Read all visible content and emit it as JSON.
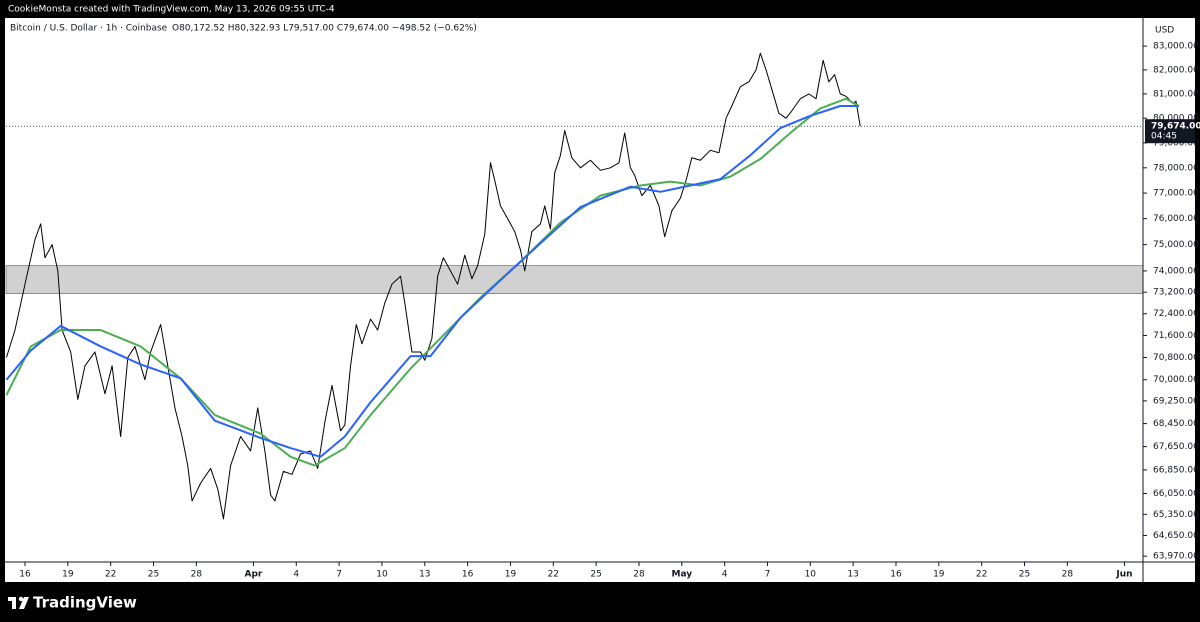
{
  "attribution": "CookieMonsta created with TradingView.com, May 13, 2026 09:55 UTC-4",
  "brand": "TradingView",
  "chart_data": {
    "type": "line",
    "symbol": "Bitcoin / U.S. Dollar · 1h · Coinbase",
    "ohlc": "O80,172.52 H80,322.93 L79,517.00 C79,674.00 −498.52 (−0.62%)",
    "currency": "USD",
    "last_price": {
      "value": 79674,
      "label": "79,674.00"
    },
    "countdown": "04:45",
    "log_scale": true,
    "grid": false,
    "zone": [
      73150,
      74200
    ],
    "zone_color": "#d1d1d1",
    "xlim": [
      14.67,
      94.3
    ],
    "ylim": [
      63780,
      84200
    ],
    "xticks": [
      16,
      19,
      22,
      25,
      28,
      {
        "value": 32,
        "label": "Apr"
      },
      {
        "value": 35,
        "label": "4"
      },
      {
        "value": 38,
        "label": "7"
      },
      {
        "value": 41,
        "label": "10"
      },
      {
        "value": 44,
        "label": "13"
      },
      {
        "value": 47,
        "label": "16"
      },
      {
        "value": 50,
        "label": "19"
      },
      {
        "value": 53,
        "label": "22"
      },
      {
        "value": 56,
        "label": "25"
      },
      {
        "value": 59,
        "label": "28"
      },
      {
        "value": 62,
        "label": "May"
      },
      {
        "value": 65,
        "label": "4"
      },
      {
        "value": 68,
        "label": "7"
      },
      {
        "value": 71,
        "label": "10"
      },
      {
        "value": 74,
        "label": "13"
      },
      {
        "value": 77,
        "label": "16"
      },
      {
        "value": 80,
        "label": "19"
      },
      {
        "value": 83,
        "label": "22"
      },
      {
        "value": 86,
        "label": "25"
      },
      {
        "value": 89,
        "label": "28"
      },
      {
        "value": 93,
        "label": "Jun"
      }
    ],
    "yticks": [
      {
        "value": 83000,
        "label": "83,000.00"
      },
      {
        "value": 82000,
        "label": "82,000.00"
      },
      {
        "value": 81000,
        "label": "81,000.00"
      },
      {
        "value": 80000,
        "label": "80,000.00"
      },
      {
        "value": 79000,
        "label": "79,000.00"
      },
      {
        "value": 78000,
        "label": "78,000.00"
      },
      {
        "value": 77000,
        "label": "77,000.00"
      },
      {
        "value": 76000,
        "label": "76,000.00"
      },
      {
        "value": 75000,
        "label": "75,000.00"
      },
      {
        "value": 74000,
        "label": "74,000.00"
      },
      {
        "value": 73200,
        "label": "73,200.00"
      },
      {
        "value": 72400,
        "label": "72,400.00"
      },
      {
        "value": 71600,
        "label": "71,600.00"
      },
      {
        "value": 70800,
        "label": "70,800.00"
      },
      {
        "value": 70000,
        "label": "70,000.00"
      },
      {
        "value": 69250,
        "label": "69,250.00"
      },
      {
        "value": 68450,
        "label": "68,450.00"
      },
      {
        "value": 67650,
        "label": "67,650.00"
      },
      {
        "value": 66850,
        "label": "66,850.00"
      },
      {
        "value": 66050,
        "label": "66,050.00"
      },
      {
        "value": 65350,
        "label": "65,350.00"
      },
      {
        "value": 64650,
        "label": "64,650.00"
      },
      {
        "value": 63970,
        "label": "63,970.00"
      }
    ],
    "series": [
      {
        "color": "#000000",
        "width": 1,
        "x": [
          14.7,
          15.3,
          16.0,
          16.7,
          17.1,
          17.4,
          17.9,
          18.3,
          18.6,
          19.2,
          19.7,
          20.2,
          20.9,
          21.6,
          22.1,
          22.7,
          23.2,
          23.7,
          24.4,
          24.8,
          25.5,
          26.0,
          26.5,
          27.0,
          27.4,
          27.7,
          28.3,
          29.0,
          29.5,
          29.9,
          30.4,
          31.1,
          31.8,
          32.3,
          32.8,
          33.2,
          33.5,
          34.1,
          34.7,
          35.3,
          36.0,
          36.5,
          37.0,
          37.5,
          38.1,
          38.4,
          38.8,
          39.2,
          39.6,
          40.2,
          40.7,
          41.2,
          41.7,
          42.3,
          42.6,
          43.1,
          43.7,
          44.0,
          44.5,
          44.9,
          45.3,
          45.8,
          46.3,
          46.8,
          47.3,
          47.7,
          48.2,
          48.6,
          48.9,
          49.3,
          49.8,
          50.3,
          50.7,
          51.0,
          51.5,
          52.1,
          52.4,
          52.8,
          53.1,
          53.5,
          53.8,
          54.3,
          54.9,
          55.6,
          56.3,
          57.0,
          57.6,
          58.0,
          58.4,
          58.7,
          59.2,
          59.8,
          60.4,
          60.8,
          61.3,
          61.9,
          62.3,
          62.7,
          63.3,
          64.0,
          64.6,
          65.1,
          65.5,
          66.1,
          66.7,
          67.2,
          67.5,
          67.9,
          68.3,
          68.8,
          69.3,
          69.7,
          70.3,
          70.9,
          71.4,
          71.9,
          72.3,
          72.7,
          73.1,
          73.5,
          74.0,
          74.2,
          74.4,
          74.5
        ],
        "values": [
          70800,
          71800,
          73500,
          75200,
          75800,
          74500,
          75000,
          74000,
          71800,
          71000,
          69300,
          70500,
          71000,
          69500,
          70500,
          68000,
          70800,
          71200,
          70000,
          71000,
          72000,
          70500,
          69000,
          68000,
          67000,
          65800,
          66400,
          66900,
          66200,
          65200,
          67000,
          68000,
          67500,
          69000,
          67500,
          66000,
          65800,
          66800,
          66700,
          67400,
          67500,
          66900,
          68500,
          69800,
          68200,
          68400,
          70500,
          72000,
          71300,
          72200,
          71800,
          72800,
          73500,
          73800,
          72800,
          71000,
          71000,
          70700,
          71500,
          73800,
          74500,
          74000,
          73500,
          74600,
          73700,
          74200,
          75400,
          78200,
          77500,
          76500,
          76000,
          75500,
          74800,
          74000,
          75500,
          75800,
          76500,
          75600,
          77800,
          78500,
          79500,
          78400,
          78000,
          78300,
          77900,
          78000,
          78200,
          79400,
          78000,
          77700,
          76900,
          77300,
          76500,
          75300,
          76300,
          76800,
          77500,
          78400,
          78300,
          78700,
          78600,
          80000,
          80500,
          81300,
          81500,
          82000,
          82700,
          82000,
          81200,
          80200,
          80000,
          80300,
          80800,
          81000,
          80800,
          82400,
          81500,
          81800,
          81000,
          80900,
          80600,
          80700,
          80000,
          79674
        ]
      },
      {
        "color": "#4caf50",
        "width": 2,
        "x": [
          14.7,
          16.4,
          18.5,
          21.3,
          24.1,
          26.9,
          29.3,
          32.5,
          34.6,
          36.3,
          38.4,
          40.2,
          43.0,
          45.1,
          47.9,
          50.7,
          53.5,
          56.3,
          59.1,
          61.2,
          63.3,
          65.4,
          67.5,
          69.6,
          71.7,
          73.5,
          74.4
        ],
        "values": [
          69450,
          71200,
          71800,
          71800,
          71200,
          70050,
          68750,
          68100,
          67300,
          67000,
          67600,
          68750,
          70400,
          71500,
          73000,
          74350,
          75850,
          76900,
          77300,
          77450,
          77300,
          77650,
          78350,
          79400,
          80400,
          80800,
          80500
        ]
      },
      {
        "color": "#2962ff",
        "width": 2,
        "x": [
          14.7,
          16.4,
          18.5,
          21.3,
          24.1,
          26.9,
          29.3,
          32.5,
          34.6,
          36.7,
          38.4,
          40.2,
          43.0,
          44.4,
          46.5,
          49.3,
          52.1,
          54.9,
          58.4,
          60.5,
          62.6,
          64.7,
          66.8,
          68.9,
          71.0,
          73.1,
          74.4
        ],
        "values": [
          70000,
          71050,
          71950,
          71200,
          70550,
          70050,
          68550,
          67950,
          67600,
          67300,
          68000,
          69200,
          70850,
          70850,
          72250,
          73650,
          75050,
          76450,
          77250,
          77050,
          77300,
          77550,
          78500,
          79600,
          80100,
          80500,
          80500
        ]
      }
    ]
  }
}
